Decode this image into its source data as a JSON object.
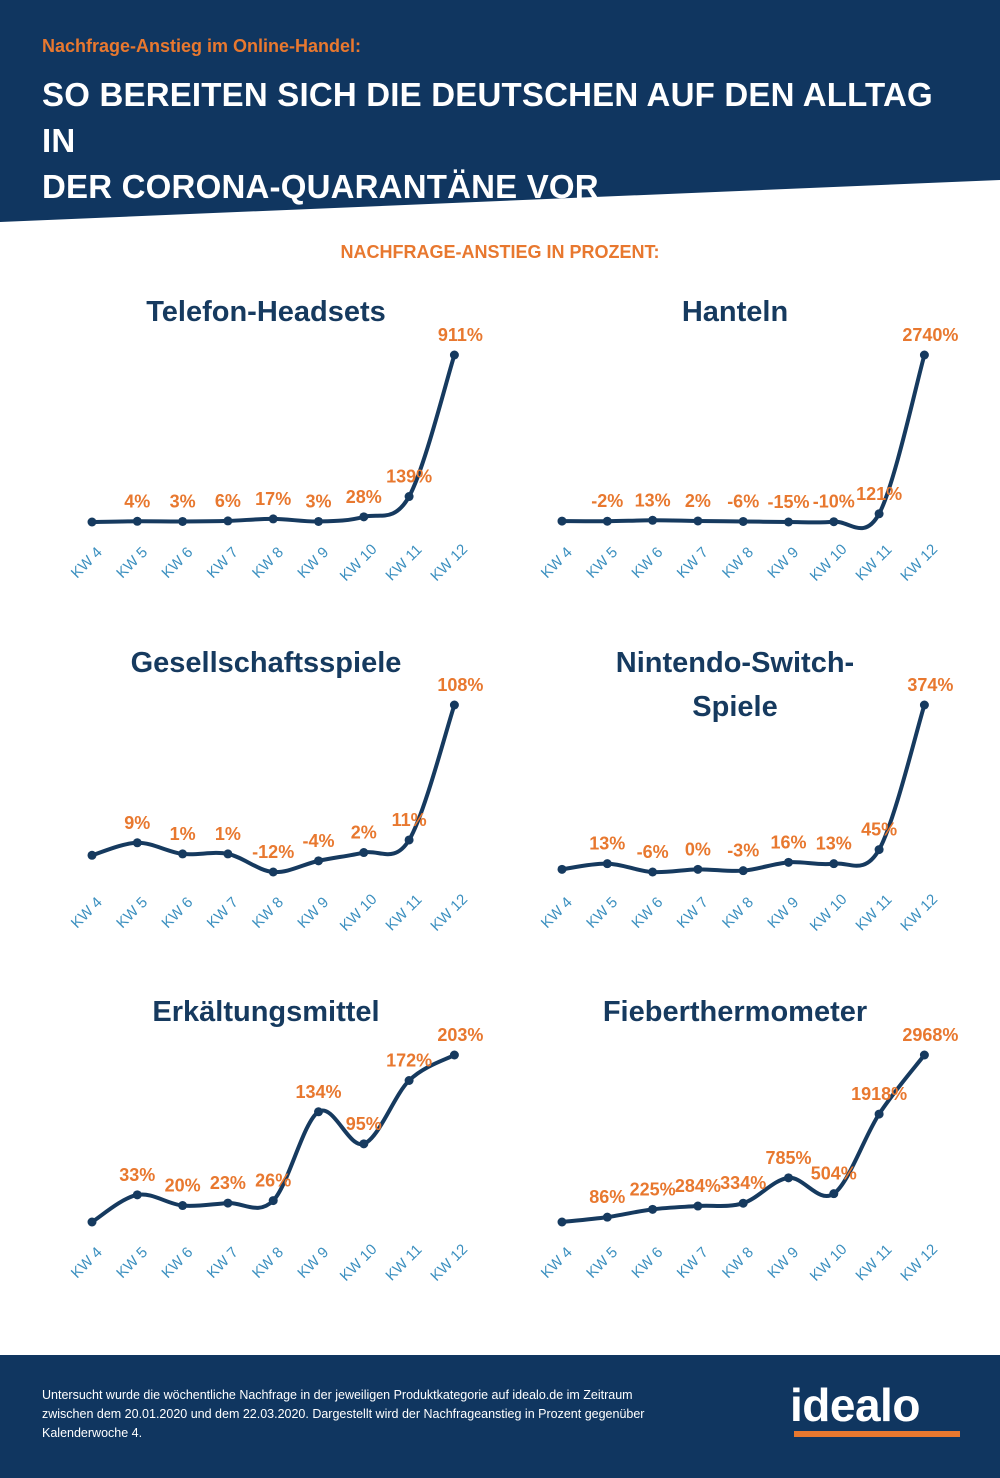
{
  "header": {
    "kicker": "Nachfrage-Anstieg im Online-Handel:",
    "title_line1": "SO BEREITEN SICH DIE DEUTSCHEN AUF DEN ALLTAG IN",
    "title_line2": "DER CORONA-QUARANTÄNE VOR"
  },
  "subtitle": "NACHFRAGE-ANSTIEG IN PROZENT:",
  "colors": {
    "navy": "#103660",
    "line": "#163a5f",
    "orange": "#e8782f",
    "axis_label": "#3b8fbf"
  },
  "chart_data": [
    {
      "type": "line",
      "title": "Telefon-Headsets",
      "categories": [
        "KW 4",
        "KW 5",
        "KW 6",
        "KW 7",
        "KW 8",
        "KW 9",
        "KW 10",
        "KW 11",
        "KW 12"
      ],
      "values": [
        0,
        4,
        3,
        6,
        17,
        3,
        28,
        139,
        911
      ],
      "labels": [
        "",
        "4%",
        "3%",
        "6%",
        "17%",
        "3%",
        "28%",
        "139%",
        "911%"
      ]
    },
    {
      "type": "line",
      "title": "Hanteln",
      "categories": [
        "KW 4",
        "KW 5",
        "KW 6",
        "KW 7",
        "KW 8",
        "KW 9",
        "KW 10",
        "KW 11",
        "KW 12"
      ],
      "values": [
        0,
        -2,
        13,
        2,
        -6,
        -15,
        -10,
        121,
        2740
      ],
      "labels": [
        "",
        "-2%",
        "13%",
        "2%",
        "-6%",
        "-15%",
        "-10%",
        "121%",
        "2740%"
      ]
    },
    {
      "type": "line",
      "title": "Gesellschaftsspiele",
      "categories": [
        "KW 4",
        "KW 5",
        "KW 6",
        "KW 7",
        "KW 8",
        "KW 9",
        "KW 10",
        "KW 11",
        "KW 12"
      ],
      "values": [
        0,
        9,
        1,
        1,
        -12,
        -4,
        2,
        11,
        108
      ],
      "labels": [
        "",
        "9%",
        "1%",
        "1%",
        "-12%",
        "-4%",
        "2%",
        "11%",
        "108%"
      ]
    },
    {
      "type": "line",
      "title": "Nintendo-Switch-Spiele",
      "title_lines": [
        "Nintendo-Switch-",
        "Spiele"
      ],
      "categories": [
        "KW 4",
        "KW 5",
        "KW 6",
        "KW 7",
        "KW 8",
        "KW 9",
        "KW 10",
        "KW 11",
        "KW 12"
      ],
      "values": [
        0,
        13,
        -6,
        0,
        -3,
        16,
        13,
        45,
        374
      ],
      "labels": [
        "",
        "13%",
        "-6%",
        "0%",
        "-3%",
        "16%",
        "13%",
        "45%",
        "374%"
      ]
    },
    {
      "type": "line",
      "title": "Erkältungsmittel",
      "categories": [
        "KW 4",
        "KW 5",
        "KW 6",
        "KW 7",
        "KW 8",
        "KW 9",
        "KW 10",
        "KW 11",
        "KW 12"
      ],
      "values": [
        0,
        33,
        20,
        23,
        26,
        134,
        95,
        172,
        203
      ],
      "labels": [
        "",
        "33%",
        "20%",
        "23%",
        "26%",
        "134%",
        "95%",
        "172%",
        "203%"
      ]
    },
    {
      "type": "line",
      "title": "Fieberthermometer",
      "categories": [
        "KW 4",
        "KW 5",
        "KW 6",
        "KW 7",
        "KW 8",
        "KW 9",
        "KW 10",
        "KW 11",
        "KW 12"
      ],
      "values": [
        0,
        86,
        225,
        284,
        334,
        785,
        504,
        1918,
        2968
      ],
      "labels": [
        "",
        "86%",
        "225%",
        "284%",
        "334%",
        "785%",
        "504%",
        "1918%",
        "2968%"
      ]
    }
  ],
  "footer": {
    "note": "Untersucht wurde die wöchentliche Nachfrage in der jeweiligen Produktkategorie auf idealo.de im Zeitraum zwischen dem 20.01.2020 und dem 22.03.2020.  Dargestellt wird der Nachfrageanstieg in Prozent gegenüber Kalenderwoche 4.",
    "logo": "idealo"
  }
}
